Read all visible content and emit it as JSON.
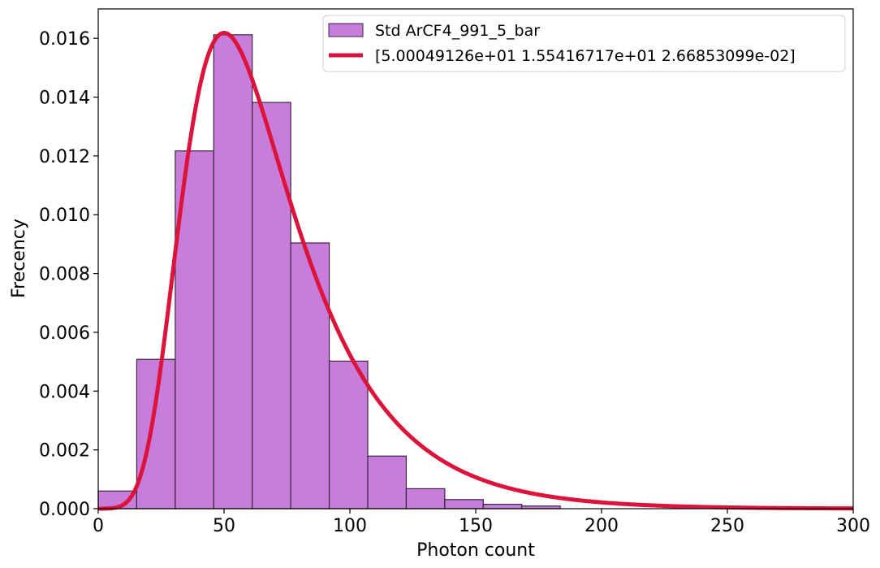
{
  "chart_data": {
    "type": "bar",
    "subtype": "histogram with fitted curve",
    "title": "",
    "xlabel": "Photon count",
    "ylabel": "Frecency",
    "xlim": [
      0,
      300
    ],
    "ylim": [
      0,
      0.017
    ],
    "grid": false,
    "legend_position": "top-right",
    "x_ticks": [
      0,
      50,
      100,
      150,
      200,
      250,
      300
    ],
    "x_tick_labels": [
      "0",
      "50",
      "100",
      "150",
      "200",
      "250",
      "300"
    ],
    "y_ticks": [
      0,
      0.002,
      0.004,
      0.006,
      0.008,
      0.01,
      0.012,
      0.014,
      0.016
    ],
    "y_tick_labels": [
      "0.000",
      "0.002",
      "0.004",
      "0.006",
      "0.008",
      "0.010",
      "0.012",
      "0.014",
      "0.016"
    ],
    "histogram": {
      "name": "Std ArCF4_991_5_bar",
      "color": "#c77dd9",
      "edge_color": "#3a2440",
      "bin_edges": [
        0,
        15.3,
        30.6,
        45.9,
        61.2,
        76.5,
        91.8,
        107.1,
        122.4,
        137.7,
        153.0,
        168.3,
        183.6
      ],
      "values": [
        0.0006,
        0.00508,
        0.01217,
        0.01612,
        0.01382,
        0.00904,
        0.00502,
        0.00179,
        0.00068,
        0.00031,
        0.00015,
        9e-05
      ]
    },
    "fit": {
      "name": "[5.00049126e+01 1.55416717e+01 2.66853099e-02]",
      "color": "#dc143c",
      "model": "moyal",
      "params": [
        50.0049126,
        15.5416717,
        0.0266853099
      ]
    }
  }
}
